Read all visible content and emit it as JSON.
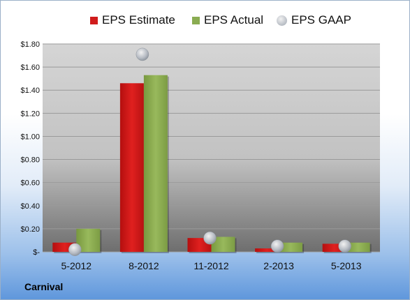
{
  "chart_data": {
    "type": "bar",
    "categories": [
      "5-2012",
      "8-2012",
      "11-2012",
      "2-2013",
      "5-2013"
    ],
    "series": [
      {
        "name": "EPS Estimate",
        "color": "#d01c1c",
        "values": [
          0.08,
          1.46,
          0.12,
          0.03,
          0.07
        ]
      },
      {
        "name": "EPS Actual",
        "color": "#8aac52",
        "values": [
          0.2,
          1.53,
          0.13,
          0.08,
          0.08
        ]
      },
      {
        "name": "EPS GAAP",
        "color": "#b4b9c2",
        "marker": "circle",
        "values": [
          0.02,
          1.71,
          0.12,
          0.05,
          0.05
        ]
      }
    ],
    "yticks": [
      "$1.80",
      "$1.60",
      "$1.40",
      "$1.20",
      "$1.00",
      "$0.80",
      "$0.60",
      "$0.40",
      "$0.20",
      "$-"
    ],
    "ylim": [
      0,
      1.8
    ],
    "grid": true,
    "legend_position": "top"
  },
  "company": "Carnival"
}
